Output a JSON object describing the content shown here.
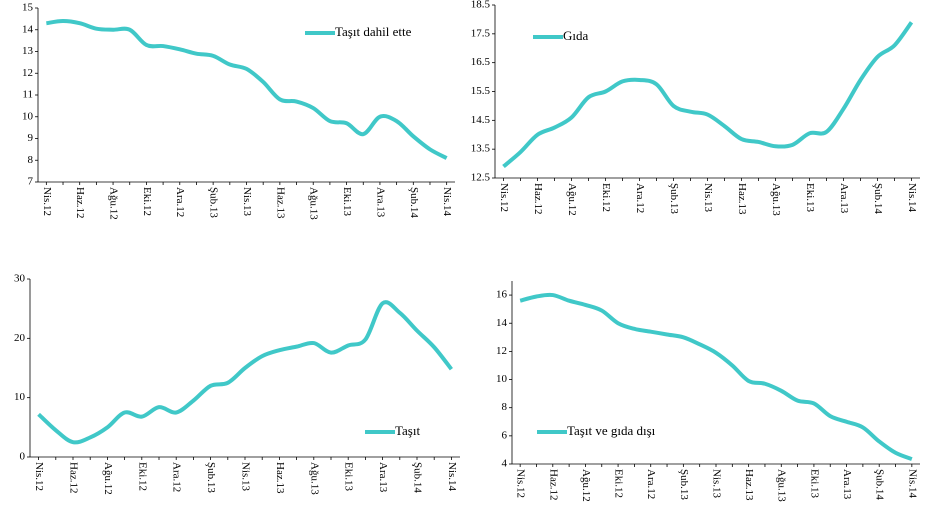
{
  "chart_data": [
    {
      "type": "line",
      "categories": [
        "Nis.12",
        null,
        "Haz.12",
        null,
        "Ağu.12",
        null,
        "Eki.12",
        null,
        "Ara.12",
        null,
        "Şub.13",
        null,
        "Nis.13",
        null,
        "Haz.13",
        null,
        "Ağu.13",
        null,
        "Eki.13",
        null,
        "Ara.13",
        null,
        "Şub.14",
        null,
        "Nis.14"
      ],
      "series": [
        {
          "name": "Taşıt dahil ette",
          "color": "#40c8c8",
          "values": [
            14.3,
            14.4,
            14.3,
            14.05,
            14.0,
            14.0,
            13.3,
            13.25,
            13.1,
            12.9,
            12.8,
            12.4,
            12.2,
            11.6,
            10.8,
            10.7,
            10.4,
            9.8,
            9.7,
            9.2,
            10.0,
            9.8,
            9.1,
            8.5,
            8.1
          ]
        }
      ],
      "ylim": [
        7,
        15
      ],
      "yticks": [
        7,
        8,
        9,
        10,
        11,
        12,
        13,
        14,
        15
      ],
      "legend": "upper right"
    },
    {
      "type": "line",
      "categories": [
        "Nis.12",
        null,
        "Haz.12",
        null,
        "Ağu.12",
        null,
        "Eki.12",
        null,
        "Ara.12",
        null,
        "Şub.13",
        null,
        "Nis.13",
        null,
        "Haz.13",
        null,
        "Ağu.13",
        null,
        "Eki.13",
        null,
        "Ara.13",
        null,
        "Şub.14",
        null,
        "Nis.14"
      ],
      "series": [
        {
          "name": "Gıda",
          "color": "#40c8c8",
          "values": [
            12.9,
            13.4,
            14.0,
            14.25,
            14.6,
            15.3,
            15.5,
            15.85,
            15.9,
            15.75,
            15.0,
            14.8,
            14.7,
            14.3,
            13.85,
            13.75,
            13.6,
            13.65,
            14.05,
            14.1,
            14.9,
            15.9,
            16.7,
            17.1,
            17.9
          ]
        }
      ],
      "ylim": [
        12.5,
        18.5
      ],
      "yticks": [
        12.5,
        13.5,
        14.5,
        15.5,
        16.5,
        17.5,
        18.5
      ],
      "legend": "upper left"
    },
    {
      "type": "line",
      "categories": [
        "Nis.12",
        null,
        "Haz.12",
        null,
        "Ağu.12",
        null,
        "Eki.12",
        null,
        "Ara.12",
        null,
        "Şub.13",
        null,
        "Nis.13",
        null,
        "Haz.13",
        null,
        "Ağu.13",
        null,
        "Eki.13",
        null,
        "Ara.13",
        null,
        "Şub.14",
        null,
        "Nis.14"
      ],
      "series": [
        {
          "name": "Taşıt",
          "color": "#40c8c8",
          "values": [
            7.2,
            4.5,
            2.5,
            3.3,
            5.0,
            7.5,
            6.8,
            8.4,
            7.5,
            9.5,
            12.0,
            12.5,
            15.0,
            17.0,
            18.0,
            18.6,
            19.2,
            17.6,
            18.8,
            19.8,
            25.9,
            24.3,
            21.3,
            18.5,
            14.8
          ]
        }
      ],
      "ylim": [
        0,
        30
      ],
      "yticks": [
        0,
        10,
        20,
        30
      ],
      "legend": "lower right"
    },
    {
      "type": "line",
      "categories": [
        "Nis.12",
        null,
        "Haz.12",
        null,
        "Ağu.12",
        null,
        "Eki.12",
        null,
        "Ara.12",
        null,
        "Şub.13",
        null,
        "Nis.13",
        null,
        "Haz.13",
        null,
        "Ağu.13",
        null,
        "Eki.13",
        null,
        "Ara.13",
        null,
        "Şub.14",
        null,
        "Nis.14"
      ],
      "series": [
        {
          "name": "Taşıt ve gıda dışı",
          "color": "#40c8c8",
          "values": [
            15.6,
            15.9,
            16.0,
            15.6,
            15.3,
            14.9,
            14.0,
            13.6,
            13.4,
            13.2,
            13.0,
            12.5,
            11.9,
            11.0,
            9.9,
            9.7,
            9.2,
            8.5,
            8.3,
            7.4,
            7.0,
            6.6,
            5.6,
            4.8,
            4.35
          ]
        }
      ],
      "ylim": [
        4,
        17
      ],
      "yticks": [
        4,
        6,
        8,
        10,
        12,
        14,
        16
      ],
      "legend": "lower left"
    }
  ]
}
